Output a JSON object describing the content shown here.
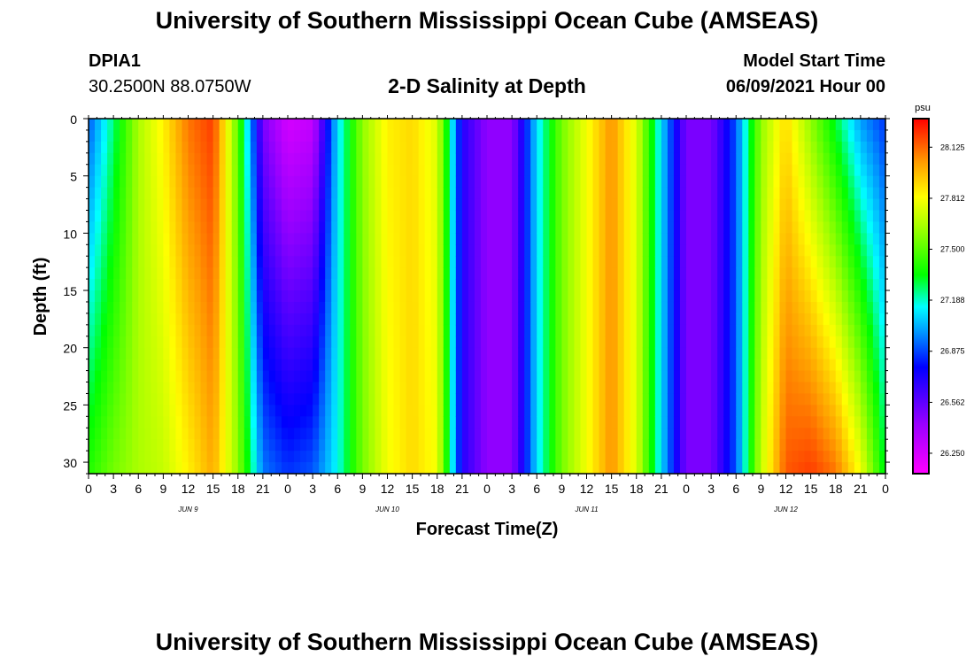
{
  "header": {
    "title_top": "University of Southern Mississippi Ocean Cube (AMSEAS)",
    "title_bottom": "University of Southern Mississippi Ocean Cube (AMSEAS)",
    "station_id": "DPIA1",
    "coords": "30.2500N  88.0750W",
    "plot_title": "2-D Salinity at Depth",
    "model_start_label": "Model Start Time",
    "model_start_value": "06/09/2021 Hour 00"
  },
  "colors": {
    "background": "#ffffff",
    "axis": "#000000"
  },
  "chart_data": {
    "type": "heatmap",
    "title": "2-D Salinity at Depth",
    "xlabel": "Forecast Time(Z)",
    "ylabel": "Depth (ft)",
    "x_tick_labels": [
      "0",
      "3",
      "6",
      "9",
      "12",
      "15",
      "18",
      "21",
      "0",
      "3",
      "6",
      "9",
      "12",
      "15",
      "18",
      "21",
      "0",
      "3",
      "6",
      "9",
      "12",
      "15",
      "18",
      "21",
      "0",
      "3",
      "6",
      "9",
      "12",
      "15",
      "18",
      "21",
      "0"
    ],
    "day_labels": [
      "JUN 9",
      "JUN 10",
      "JUN 11",
      "JUN 12"
    ],
    "xlim_hours": [
      0,
      96
    ],
    "ylim_ft": [
      0,
      31
    ],
    "y_ticks": [
      0,
      5,
      10,
      15,
      20,
      25,
      30
    ],
    "colorbar": {
      "unit": "psu",
      "range": [
        26.125,
        28.3
      ],
      "ticks": [
        "28.125",
        "27.812",
        "27.500",
        "27.188",
        "26.875",
        "26.562",
        "26.250"
      ]
    },
    "surface_salinity_keyframes": [
      {
        "h": 0,
        "v": 26.9
      },
      {
        "h": 3,
        "v": 27.25
      },
      {
        "h": 6,
        "v": 27.65
      },
      {
        "h": 9,
        "v": 27.85
      },
      {
        "h": 12,
        "v": 28.1
      },
      {
        "h": 15,
        "v": 28.2
      },
      {
        "h": 18,
        "v": 27.5
      },
      {
        "h": 21,
        "v": 26.5
      },
      {
        "h": 24,
        "v": 26.25
      },
      {
        "h": 27,
        "v": 26.3
      },
      {
        "h": 30,
        "v": 27.1
      },
      {
        "h": 33,
        "v": 27.6
      },
      {
        "h": 36,
        "v": 27.85
      },
      {
        "h": 39,
        "v": 27.9
      },
      {
        "h": 42,
        "v": 27.75
      },
      {
        "h": 45,
        "v": 26.7
      },
      {
        "h": 48,
        "v": 26.45
      },
      {
        "h": 51,
        "v": 26.45
      },
      {
        "h": 54,
        "v": 27.1
      },
      {
        "h": 57,
        "v": 27.55
      },
      {
        "h": 60,
        "v": 27.8
      },
      {
        "h": 63,
        "v": 28.05
      },
      {
        "h": 66,
        "v": 27.75
      },
      {
        "h": 69,
        "v": 27.1
      },
      {
        "h": 72,
        "v": 26.5
      },
      {
        "h": 75,
        "v": 26.5
      },
      {
        "h": 78,
        "v": 26.9
      },
      {
        "h": 81,
        "v": 27.6
      },
      {
        "h": 84,
        "v": 27.9
      },
      {
        "h": 87,
        "v": 27.6
      },
      {
        "h": 90,
        "v": 27.3
      },
      {
        "h": 93,
        "v": 27.0
      },
      {
        "h": 96,
        "v": 26.85
      }
    ],
    "bottom_salinity_keyframes": [
      {
        "h": 0,
        "v": 27.4
      },
      {
        "h": 3,
        "v": 27.55
      },
      {
        "h": 6,
        "v": 27.65
      },
      {
        "h": 9,
        "v": 27.7
      },
      {
        "h": 12,
        "v": 27.85
      },
      {
        "h": 15,
        "v": 28.0
      },
      {
        "h": 18,
        "v": 27.6
      },
      {
        "h": 21,
        "v": 26.95
      },
      {
        "h": 24,
        "v": 26.85
      },
      {
        "h": 27,
        "v": 26.9
      },
      {
        "h": 30,
        "v": 27.15
      },
      {
        "h": 33,
        "v": 27.55
      },
      {
        "h": 36,
        "v": 27.8
      },
      {
        "h": 39,
        "v": 27.9
      },
      {
        "h": 42,
        "v": 27.8
      },
      {
        "h": 45,
        "v": 26.7
      },
      {
        "h": 48,
        "v": 26.45
      },
      {
        "h": 51,
        "v": 26.45
      },
      {
        "h": 54,
        "v": 27.1
      },
      {
        "h": 57,
        "v": 27.55
      },
      {
        "h": 60,
        "v": 27.8
      },
      {
        "h": 63,
        "v": 28.05
      },
      {
        "h": 66,
        "v": 27.75
      },
      {
        "h": 69,
        "v": 27.1
      },
      {
        "h": 72,
        "v": 26.5
      },
      {
        "h": 75,
        "v": 26.5
      },
      {
        "h": 78,
        "v": 26.9
      },
      {
        "h": 81,
        "v": 27.7
      },
      {
        "h": 84,
        "v": 28.15
      },
      {
        "h": 87,
        "v": 28.2
      },
      {
        "h": 90,
        "v": 28.1
      },
      {
        "h": 93,
        "v": 27.8
      },
      {
        "h": 96,
        "v": 27.3
      }
    ]
  }
}
